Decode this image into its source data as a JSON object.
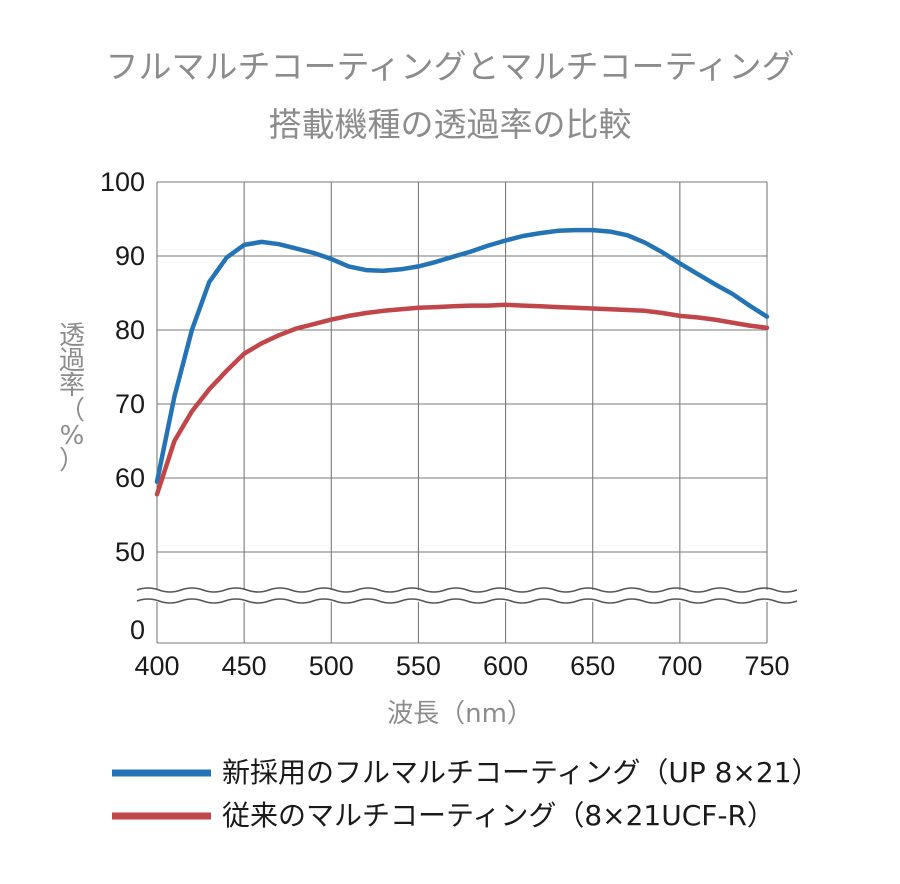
{
  "chart_data": {
    "type": "line",
    "title_line1": "フルマルチコーティングとマルチコーティング",
    "title_line2": "搭載機種の透過率の比較",
    "xlabel": "波長（nm）",
    "ylabel_chars": [
      "透",
      "過",
      "率",
      "（",
      "%",
      "）"
    ],
    "xlim": [
      400,
      750
    ],
    "ylim": [
      45,
      100
    ],
    "axis_break": true,
    "x_ticks": [
      "400",
      "450",
      "500",
      "550",
      "600",
      "650",
      "700",
      "750"
    ],
    "y_ticks": [
      "100",
      "90",
      "80",
      "70",
      "60",
      "50",
      "0"
    ],
    "grid": true,
    "legend_position": "bottom",
    "series": [
      {
        "name": "新採用のフルマルチコーティング（UP 8×21）",
        "color": "#2474b5",
        "x": [
          400,
          410,
          420,
          430,
          440,
          450,
          460,
          470,
          480,
          490,
          500,
          510,
          520,
          530,
          540,
          550,
          560,
          570,
          580,
          590,
          600,
          610,
          620,
          630,
          640,
          650,
          660,
          670,
          680,
          690,
          700,
          710,
          720,
          730,
          740,
          750
        ],
        "y": [
          59.5,
          71,
          80,
          86.5,
          89.8,
          91.5,
          91.9,
          91.6,
          91,
          90.4,
          89.6,
          88.6,
          88.1,
          88,
          88.2,
          88.6,
          89.2,
          89.9,
          90.6,
          91.4,
          92.1,
          92.7,
          93.1,
          93.4,
          93.5,
          93.5,
          93.3,
          92.8,
          91.8,
          90.5,
          89,
          87.6,
          86.2,
          84.9,
          83.3,
          81.8
        ]
      },
      {
        "name": "従来のマルチコーティング（8×21UCF-R）",
        "color": "#c0464a",
        "x": [
          400,
          410,
          420,
          430,
          440,
          450,
          460,
          470,
          480,
          490,
          500,
          510,
          520,
          530,
          540,
          550,
          560,
          570,
          580,
          590,
          600,
          610,
          620,
          630,
          640,
          650,
          660,
          670,
          680,
          690,
          700,
          710,
          720,
          730,
          740,
          750
        ],
        "y": [
          57.8,
          65,
          69,
          72,
          74.5,
          76.8,
          78.2,
          79.3,
          80.2,
          80.8,
          81.4,
          81.9,
          82.3,
          82.6,
          82.8,
          83,
          83.1,
          83.2,
          83.3,
          83.3,
          83.4,
          83.3,
          83.2,
          83.1,
          83,
          82.9,
          82.8,
          82.7,
          82.6,
          82.3,
          81.9,
          81.7,
          81.4,
          81,
          80.6,
          80.3
        ]
      }
    ]
  }
}
